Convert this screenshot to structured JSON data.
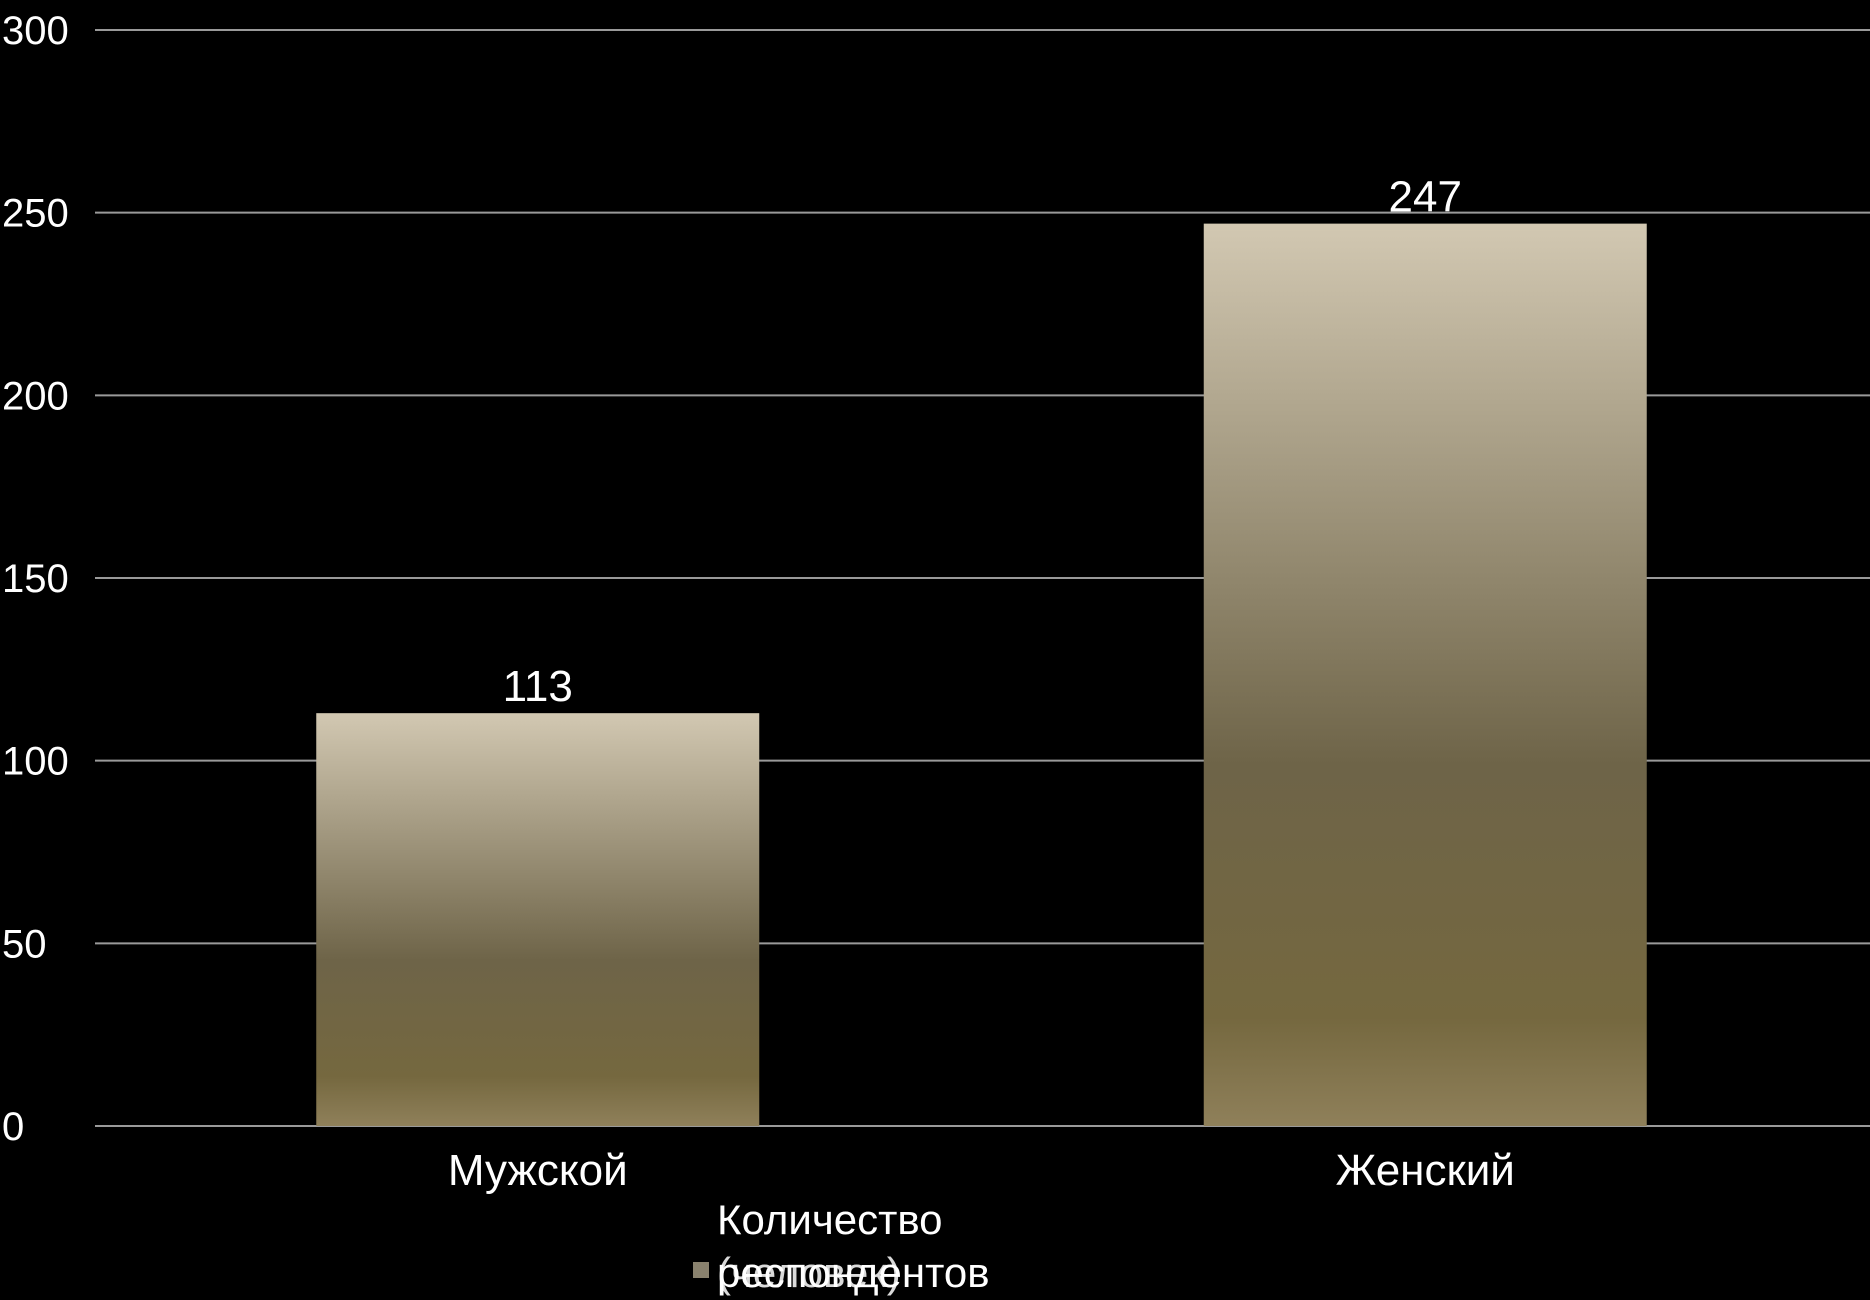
{
  "chart_data": {
    "type": "bar",
    "categories": [
      "Мужской",
      "Женский"
    ],
    "series": [
      {
        "name": "Количество респондентов (человек)",
        "values": [
          113,
          247
        ]
      }
    ],
    "data_labels": [
      "113",
      "247"
    ],
    "ylim": [
      0,
      300
    ],
    "yticks": [
      0,
      50,
      100,
      150,
      200,
      250,
      300
    ],
    "ytick_labels": [
      "0",
      "50",
      "100",
      "150",
      "200",
      "250",
      "300"
    ],
    "grid": true,
    "legend": {
      "placement": "bottom",
      "line1": "Количество",
      "line2": "респондентов",
      "line3": "(человек)"
    },
    "colors": {
      "background": "#000000",
      "grid": "#9a9a9a",
      "bar_top": "#d2c8b2",
      "bar_mid": "#6e6448",
      "bar_bottom": "#8f805a",
      "legend_swatch": "#8a826e"
    }
  }
}
